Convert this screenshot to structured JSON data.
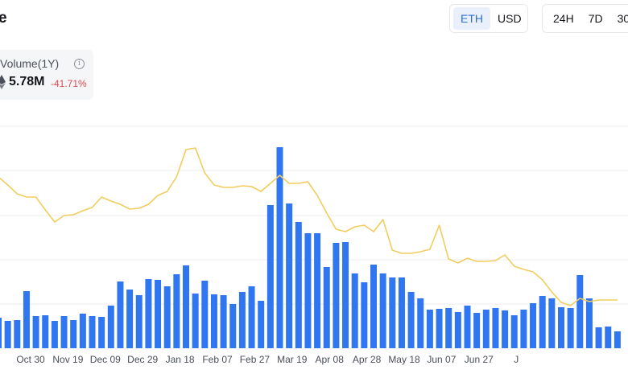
{
  "header": {
    "title_fragment": "e"
  },
  "currency_toggle": {
    "options": [
      "ETH",
      "USD"
    ],
    "active": "ETH"
  },
  "range_toggle": {
    "options": [
      "24H",
      "7D",
      "30"
    ]
  },
  "stat": {
    "label": "Volume(1Y)",
    "value": "5.78M",
    "change": "-41.71%",
    "change_color": "#e5484d",
    "currency_icon": "eth-icon",
    "info_icon": "info-icon"
  },
  "colors": {
    "bar": "#2f76f0",
    "line": "#f2cd5d",
    "grid": "#eceef2",
    "active_bg": "#eaf0fb",
    "active_text": "#2e6ed6"
  },
  "chart_data": {
    "type": "bar",
    "grid": true,
    "tick_labels": [
      "Oct 30",
      "Nov 19",
      "Dec 09",
      "Dec 29",
      "Jan 18",
      "Feb 07",
      "Feb 27",
      "Mar 19",
      "Apr 08",
      "Apr 28",
      "May 18",
      "Jun 07",
      "Jun 27",
      "J"
    ],
    "series": [
      {
        "kind": "bar",
        "values": [
          38,
          34,
          35,
          71,
          40,
          41,
          34,
          40,
          35,
          43,
          40,
          39,
          53,
          83,
          73,
          66,
          86,
          85,
          77,
          92,
          103,
          68,
          84,
          67,
          66,
          55,
          70,
          77,
          59,
          178,
          250,
          180,
          157,
          143,
          143,
          101,
          131,
          132,
          93,
          82,
          104,
          93,
          88,
          88,
          70,
          62,
          48,
          49,
          50,
          45,
          53,
          44,
          48,
          50,
          47,
          41,
          48,
          56,
          65,
          62,
          51,
          50,
          91,
          62,
          26,
          27,
          21
        ]
      },
      {
        "kind": "line",
        "values": [
          213,
          203,
          192,
          188,
          188,
          172,
          157,
          165,
          166,
          171,
          175,
          188,
          183,
          179,
          173,
          174,
          179,
          190,
          195,
          213,
          247,
          249,
          218,
          203,
          200,
          200,
          202,
          201,
          195,
          205,
          215,
          205,
          205,
          207,
          190,
          168,
          148,
          145,
          151,
          153,
          145,
          160,
          122,
          118,
          118,
          120,
          123,
          153,
          111,
          106,
          112,
          108,
          108,
          109,
          116,
          102,
          98,
          95,
          85,
          70,
          57,
          53,
          62,
          58,
          60,
          60,
          60
        ]
      }
    ]
  }
}
